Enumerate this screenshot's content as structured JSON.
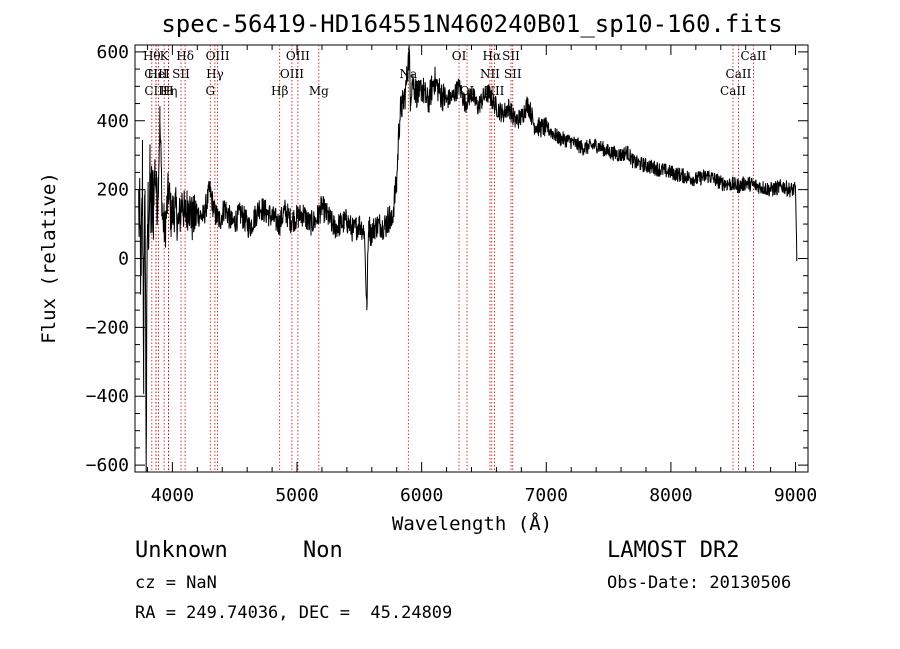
{
  "chart_data": {
    "type": "line",
    "title": "spec-56419-HD164551N460240B01_sp10-160.fits",
    "xlabel": "Wavelength (Å)",
    "ylabel": "Flux (relative)",
    "xlim": [
      3700,
      9100
    ],
    "ylim": [
      -620,
      620
    ],
    "x_ticks": [
      4000,
      5000,
      6000,
      7000,
      8000,
      9000
    ],
    "x_tick_labels": [
      "4000",
      "5000",
      "6000",
      "7000",
      "8000",
      "9000"
    ],
    "y_ticks": [
      -600,
      -400,
      -200,
      0,
      200,
      400,
      600
    ],
    "y_tick_labels": [
      "−600",
      "−400",
      "−200",
      "0",
      "200",
      "400",
      "600"
    ],
    "spectrum": {
      "x": [
        3730,
        3750,
        3760,
        3770,
        3780,
        3790,
        3800,
        3820,
        3840,
        3860,
        3880,
        3900,
        3920,
        3940,
        3960,
        3970,
        3990,
        4020,
        4050,
        4080,
        4100,
        4130,
        4160,
        4200,
        4250,
        4300,
        4340,
        4380,
        4420,
        4480,
        4550,
        4620,
        4700,
        4800,
        4860,
        4900,
        4950,
        5000,
        5050,
        5100,
        5150,
        5200,
        5250,
        5300,
        5350,
        5400,
        5450,
        5500,
        5540,
        5560,
        5575,
        5590,
        5620,
        5660,
        5700,
        5740,
        5760,
        5780,
        5800,
        5815,
        5830,
        5850,
        5870,
        5890,
        5900,
        5910,
        5925,
        5950,
        5980,
        6000,
        6050,
        6100,
        6150,
        6200,
        6250,
        6300,
        6350,
        6400,
        6450,
        6500,
        6540,
        6563,
        6600,
        6650,
        6700,
        6750,
        6800,
        6850,
        6880,
        6900,
        6950,
        7000,
        7100,
        7200,
        7300,
        7400,
        7500,
        7600,
        7650,
        7700,
        7800,
        7900,
        8000,
        8100,
        8200,
        8300,
        8400,
        8500,
        8550,
        8600,
        8700,
        8800,
        8900,
        8950,
        9000,
        9010
      ],
      "y": [
        150,
        -50,
        250,
        -300,
        200,
        -590,
        100,
        180,
        130,
        260,
        150,
        400,
        120,
        80,
        160,
        200,
        120,
        150,
        100,
        170,
        120,
        160,
        110,
        130,
        120,
        200,
        130,
        110,
        150,
        100,
        130,
        90,
        150,
        120,
        100,
        140,
        110,
        120,
        130,
        100,
        110,
        150,
        120,
        90,
        100,
        110,
        80,
        100,
        80,
        -150,
        110,
        70,
        90,
        100,
        90,
        120,
        100,
        170,
        220,
        360,
        430,
        450,
        480,
        560,
        600,
        470,
        520,
        490,
        470,
        500,
        450,
        520,
        480,
        460,
        470,
        500,
        450,
        480,
        440,
        470,
        480,
        460,
        440,
        420,
        440,
        400,
        410,
        450,
        420,
        390,
        380,
        380,
        350,
        340,
        320,
        330,
        310,
        300,
        310,
        280,
        270,
        260,
        250,
        240,
        230,
        240,
        220,
        215,
        210,
        220,
        210,
        200,
        210,
        200,
        200,
        10
      ],
      "noise": [
        {
          "from": 3700,
          "to": 3850,
          "amp": 320
        },
        {
          "from": 3850,
          "to": 4200,
          "amp": 140
        },
        {
          "from": 4200,
          "to": 5700,
          "amp": 75
        },
        {
          "from": 5700,
          "to": 6200,
          "amp": 90
        },
        {
          "from": 6200,
          "to": 7000,
          "amp": 60
        },
        {
          "from": 7000,
          "to": 9000,
          "amp": 45
        }
      ]
    },
    "line_markers": [
      {
        "wavelength": 3835,
        "label": "Hθ",
        "row": 0
      },
      {
        "wavelength": 3868,
        "label": "CIII",
        "row": 1
      },
      {
        "wavelength": 3869,
        "label": "CIII",
        "row": 2
      },
      {
        "wavelength": 3889,
        "label": "HeI",
        "row": 1
      },
      {
        "wavelength": 3934,
        "label": "K",
        "row": 0
      },
      {
        "wavelength": 3970,
        "label": "Hη",
        "row": 2
      },
      {
        "wavelength": 3968,
        "label": "H",
        "row": 2
      },
      {
        "wavelength": 4069,
        "label": "SII",
        "row": 1
      },
      {
        "wavelength": 4102,
        "label": "Hδ",
        "row": 0
      },
      {
        "wavelength": 4304,
        "label": "G",
        "row": 2
      },
      {
        "wavelength": 4341,
        "label": "Hγ",
        "row": 1
      },
      {
        "wavelength": 4363,
        "label": "OIII",
        "row": 0
      },
      {
        "wavelength": 4861,
        "label": "Hβ",
        "row": 2
      },
      {
        "wavelength": 4959,
        "label": "OIII",
        "row": 1
      },
      {
        "wavelength": 5007,
        "label": "OIII",
        "row": 0
      },
      {
        "wavelength": 5175,
        "label": "Mg",
        "row": 2
      },
      {
        "wavelength": 5893,
        "label": "Na",
        "row": 1
      },
      {
        "wavelength": 6300,
        "label": "OI",
        "row": 0
      },
      {
        "wavelength": 6364,
        "label": "OI",
        "row": 2
      },
      {
        "wavelength": 6548,
        "label": "NII",
        "row": 1
      },
      {
        "wavelength": 6563,
        "label": "Hα",
        "row": 0
      },
      {
        "wavelength": 6584,
        "label": "NII",
        "row": 2
      },
      {
        "wavelength": 6717,
        "label": "SII",
        "row": 0
      },
      {
        "wavelength": 6731,
        "label": "SII",
        "row": 1
      },
      {
        "wavelength": 8498,
        "label": "CaII",
        "row": 2
      },
      {
        "wavelength": 8542,
        "label": "CaII",
        "row": 1
      },
      {
        "wavelength": 8662,
        "label": "CaII",
        "row": 0
      }
    ],
    "marker_color": "#cc0000",
    "line_color": "#000000"
  },
  "info": {
    "object_class": "Unknown",
    "object_subclass": "Non",
    "survey": "LAMOST DR2",
    "cz": "cz = NaN",
    "obs_date": "Obs-Date: 20130506",
    "coords": "RA = 249.74036, DEC =  45.24809"
  }
}
